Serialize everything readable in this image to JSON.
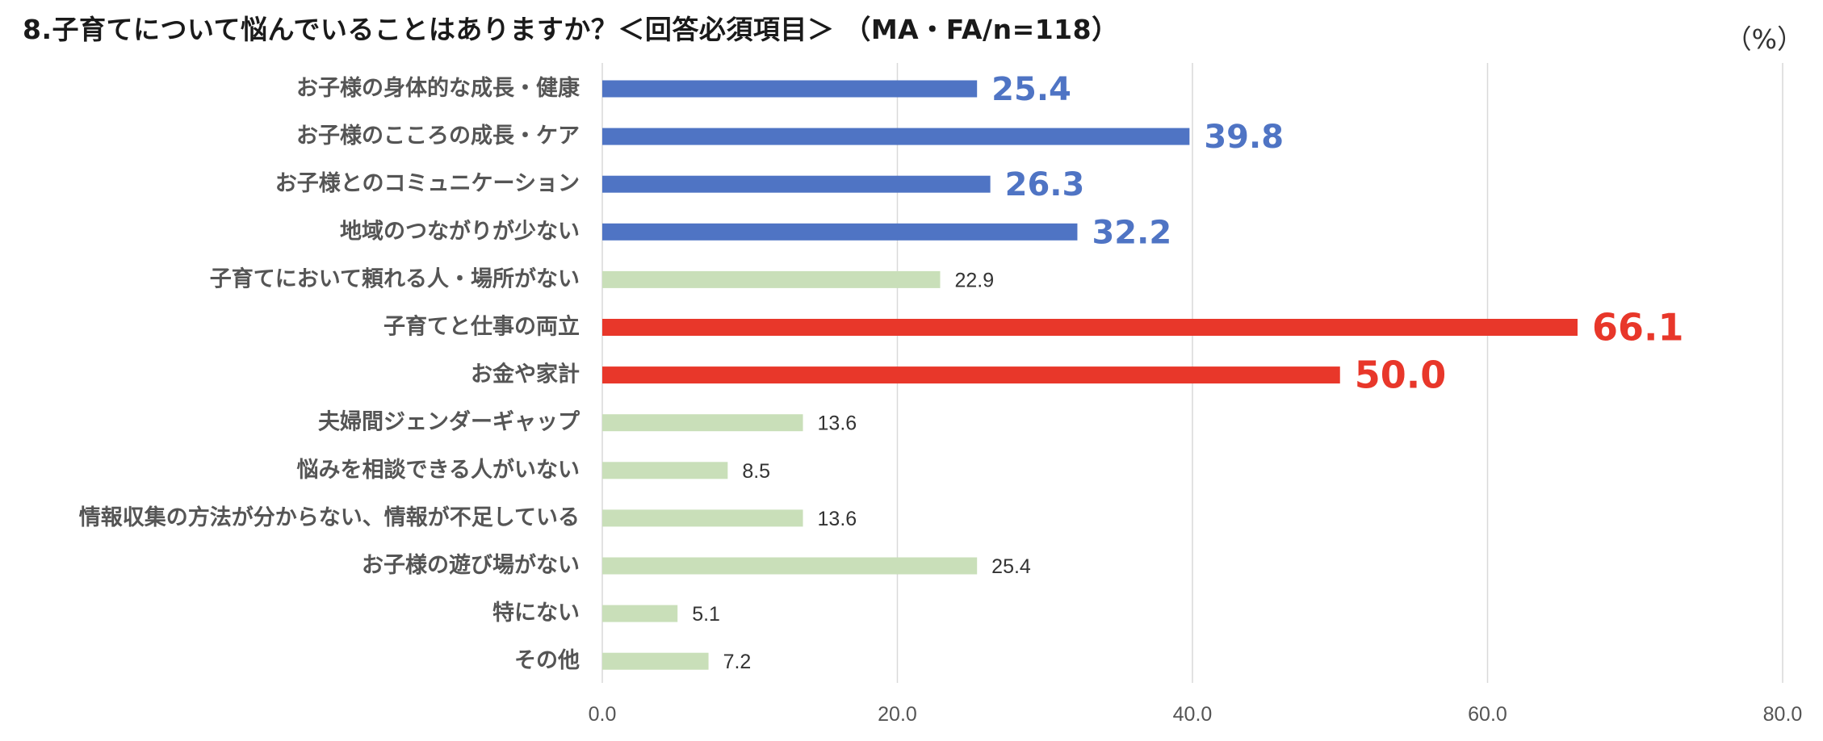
{
  "title": "8.子育てについて悩んでいることはありますか？＜回答必須項目＞ （MA・FA/n=118）",
  "unit": "（%）",
  "colors": {
    "blue": "#4F74C4",
    "red": "#E8372A",
    "green": "#C9DFB9",
    "grid": "#D9D9D9"
  },
  "chart_data": {
    "type": "bar",
    "orientation": "horizontal",
    "categories": [
      "お子様の身体的な成長・健康",
      "お子様のこころの成長・ケア",
      "お子様とのコミュニケーション",
      "地域のつながりが少ない",
      "子育てにおいて頼れる人・場所がない",
      "子育てと仕事の両立",
      "お金や家計",
      "夫婦間ジェンダーギャップ",
      "悩みを相談できる人がいない",
      "情報収集の方法が分からない、情報が不足している",
      "お子様の遊び場がない",
      "特にない",
      "その他"
    ],
    "values": [
      25.4,
      39.8,
      26.3,
      32.2,
      22.9,
      66.1,
      50.0,
      13.6,
      8.5,
      13.6,
      25.4,
      5.1,
      7.2
    ],
    "value_labels": [
      "25.4",
      "39.8",
      "26.3",
      "32.2",
      "22.9",
      "66.1",
      "50.0",
      "13.6",
      "8.5",
      "13.6",
      "25.4",
      "5.1",
      "7.2"
    ],
    "highlight": [
      "blue",
      "blue",
      "blue",
      "blue",
      "green",
      "red",
      "red",
      "green",
      "green",
      "green",
      "green",
      "green",
      "green"
    ],
    "xlim": [
      0,
      80
    ],
    "xticks": [
      "0.0",
      "20.0",
      "40.0",
      "60.0",
      "80.0"
    ],
    "grid": true
  }
}
